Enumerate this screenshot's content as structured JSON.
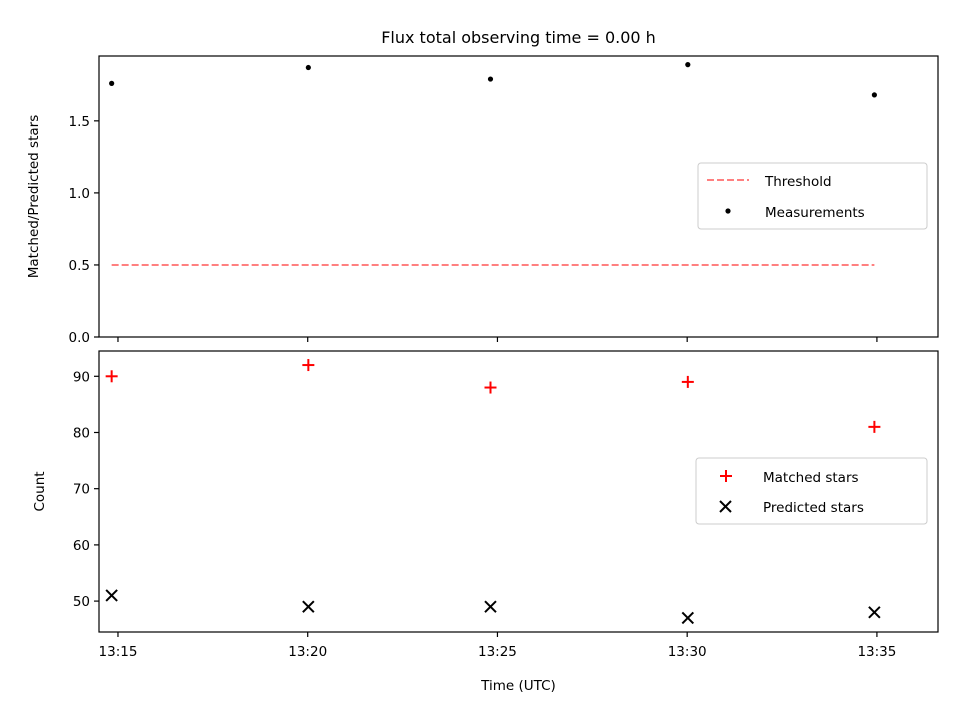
{
  "chart_data": [
    {
      "type": "scatter",
      "title": "Flux total observing time = 0.00 h",
      "ylabel": "Matched/Predicted stars",
      "xlabel": "",
      "x_axis": "time",
      "xlim": [
        "13:14:30",
        "13:36:35"
      ],
      "ylim": [
        0,
        1.95
      ],
      "y_ticks": [
        "0.0",
        "0.5",
        "1.0",
        "1.5"
      ],
      "y_tick_values": [
        0,
        0.5,
        1.0,
        1.5
      ],
      "x_tick_labels_visible": false,
      "legend_position": "center-right",
      "series": [
        {
          "name": "Threshold",
          "style": "dashed-line",
          "color": "#ff8080",
          "x": [
            "13:14:50",
            "13:20:01",
            "13:24:49",
            "13:30:01",
            "13:34:56"
          ],
          "values": [
            0.5,
            0.5,
            0.5,
            0.5,
            0.5
          ]
        },
        {
          "name": "Measurements",
          "style": "dot",
          "color": "#000000",
          "x": [
            "13:14:50",
            "13:20:01",
            "13:24:49",
            "13:30:01",
            "13:34:56"
          ],
          "values": [
            1.76,
            1.87,
            1.79,
            1.89,
            1.68
          ]
        }
      ]
    },
    {
      "type": "scatter",
      "title": "",
      "ylabel": "Count",
      "xlabel": "Time (UTC)",
      "x_axis": "time",
      "xlim": [
        "13:14:30",
        "13:36:35"
      ],
      "ylim": [
        44.5,
        94.5
      ],
      "y_ticks": [
        "50",
        "60",
        "70",
        "80",
        "90"
      ],
      "y_tick_values": [
        50,
        60,
        70,
        80,
        90
      ],
      "x_ticks": [
        "13:15",
        "13:20",
        "13:25",
        "13:30",
        "13:35"
      ],
      "x_tick_values": [
        "13:15:00",
        "13:20:00",
        "13:25:00",
        "13:30:00",
        "13:35:00"
      ],
      "legend_position": "center-right",
      "series": [
        {
          "name": "Matched stars",
          "marker": "+",
          "color": "#ff0000",
          "x": [
            "13:14:50",
            "13:20:01",
            "13:24:49",
            "13:30:01",
            "13:34:56"
          ],
          "values": [
            90,
            92,
            88,
            89,
            81
          ]
        },
        {
          "name": "Predicted stars",
          "marker": "x",
          "color": "#000000",
          "x": [
            "13:14:50",
            "13:20:01",
            "13:24:49",
            "13:30:01",
            "13:34:56"
          ],
          "values": [
            51,
            49,
            49,
            47,
            48
          ]
        }
      ]
    }
  ]
}
